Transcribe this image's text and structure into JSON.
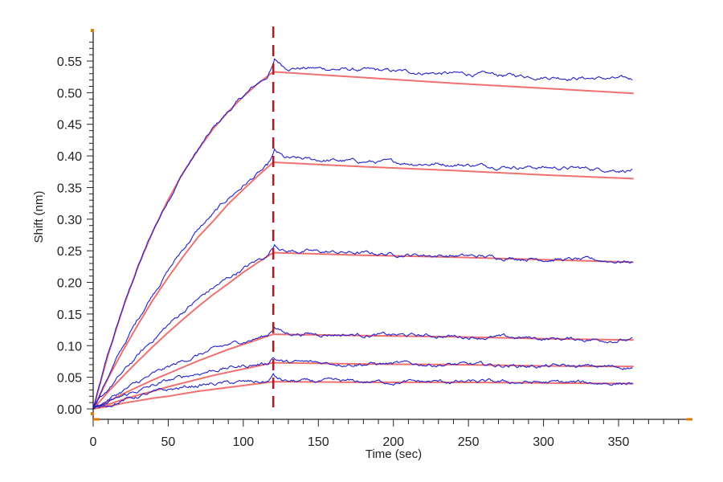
{
  "chart_data": {
    "type": "line",
    "title": "",
    "xlabel": "Time (sec)",
    "ylabel": "Shift (nm)",
    "xlim": [
      0,
      395
    ],
    "ylim": [
      -0.017,
      0.59
    ],
    "xticks": [
      0,
      50,
      100,
      150,
      200,
      250,
      300,
      350
    ],
    "xtick_labels": [
      "0",
      "50",
      "100",
      "150",
      "200",
      "250",
      "300",
      "350"
    ],
    "yticks": [
      0,
      0.05,
      0.1,
      0.15,
      0.2,
      0.25,
      0.3,
      0.35,
      0.4,
      0.45,
      0.5,
      0.55
    ],
    "ytick_labels": [
      "0.00",
      "0.05",
      "0.10",
      "0.15",
      "0.20",
      "0.25",
      "0.30",
      "0.35",
      "0.40",
      "0.45",
      "0.50",
      "0.55"
    ],
    "grid": false,
    "legend": "none",
    "vertical_marker": {
      "x": 120,
      "color": "#c0141c",
      "style": "dashed"
    },
    "colors": {
      "fit": "#f07070",
      "measured": "#2020d0",
      "axis": "#222222",
      "axis_marker": "#e07b00"
    },
    "x": [
      0,
      10,
      20,
      30,
      40,
      50,
      60,
      70,
      80,
      90,
      100,
      110,
      120,
      180,
      240,
      300,
      360
    ],
    "fit_series": [
      {
        "values": [
          0,
          0.086,
          0.161,
          0.226,
          0.282,
          0.331,
          0.374,
          0.41,
          0.443,
          0.47,
          0.494,
          0.515,
          0.533,
          0.524,
          0.515,
          0.507,
          0.499
        ]
      },
      {
        "values": [
          0,
          0.049,
          0.093,
          0.134,
          0.173,
          0.208,
          0.241,
          0.272,
          0.297,
          0.324,
          0.347,
          0.369,
          0.39,
          0.383,
          0.377,
          0.37,
          0.364
        ]
      },
      {
        "values": [
          0,
          0.027,
          0.052,
          0.076,
          0.099,
          0.121,
          0.142,
          0.162,
          0.181,
          0.198,
          0.216,
          0.232,
          0.247,
          0.243,
          0.24,
          0.236,
          0.232
        ]
      },
      {
        "values": [
          0,
          0.012,
          0.024,
          0.035,
          0.046,
          0.056,
          0.066,
          0.076,
          0.085,
          0.094,
          0.102,
          0.11,
          0.118,
          0.116,
          0.114,
          0.111,
          0.109
        ]
      },
      {
        "values": [
          0,
          0.007,
          0.015,
          0.022,
          0.028,
          0.035,
          0.041,
          0.047,
          0.053,
          0.058,
          0.063,
          0.068,
          0.073,
          0.071,
          0.07,
          0.068,
          0.067
        ]
      },
      {
        "values": [
          0,
          0.004,
          0.009,
          0.013,
          0.017,
          0.02,
          0.024,
          0.028,
          0.031,
          0.034,
          0.037,
          0.04,
          0.043,
          0.042,
          0.042,
          0.041,
          0.04
        ]
      }
    ],
    "measured_series_end_values": [
      0.513,
      0.372,
      0.229,
      0.107,
      0.065,
      0.04
    ]
  }
}
